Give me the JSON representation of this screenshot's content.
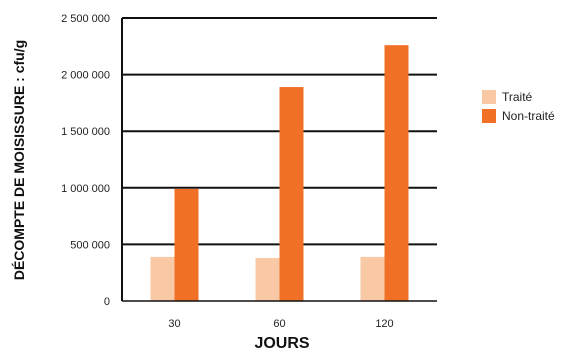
{
  "chart_data": {
    "type": "bar",
    "title": "",
    "xlabel": "JOURS",
    "ylabel": "DÉCOMPTE DE MOISISSURE : cfu/g",
    "categories": [
      "30",
      "60",
      "120"
    ],
    "series": [
      {
        "name": "Traité",
        "color": "#f9c9a6",
        "values": [
          390000,
          380000,
          390000
        ]
      },
      {
        "name": "Non-traité",
        "color": "#f07125",
        "values": [
          990000,
          1890000,
          2260000
        ]
      }
    ],
    "ylim": [
      0,
      2500000
    ],
    "yticks": [
      0,
      500000,
      1000000,
      1500000,
      2000000,
      2500000
    ],
    "ytick_labels": [
      "0",
      "500 000",
      "1 000 000",
      "1 500 000",
      "2 000 000",
      "2 500 000"
    ],
    "grid": true,
    "legend_position": "right"
  }
}
